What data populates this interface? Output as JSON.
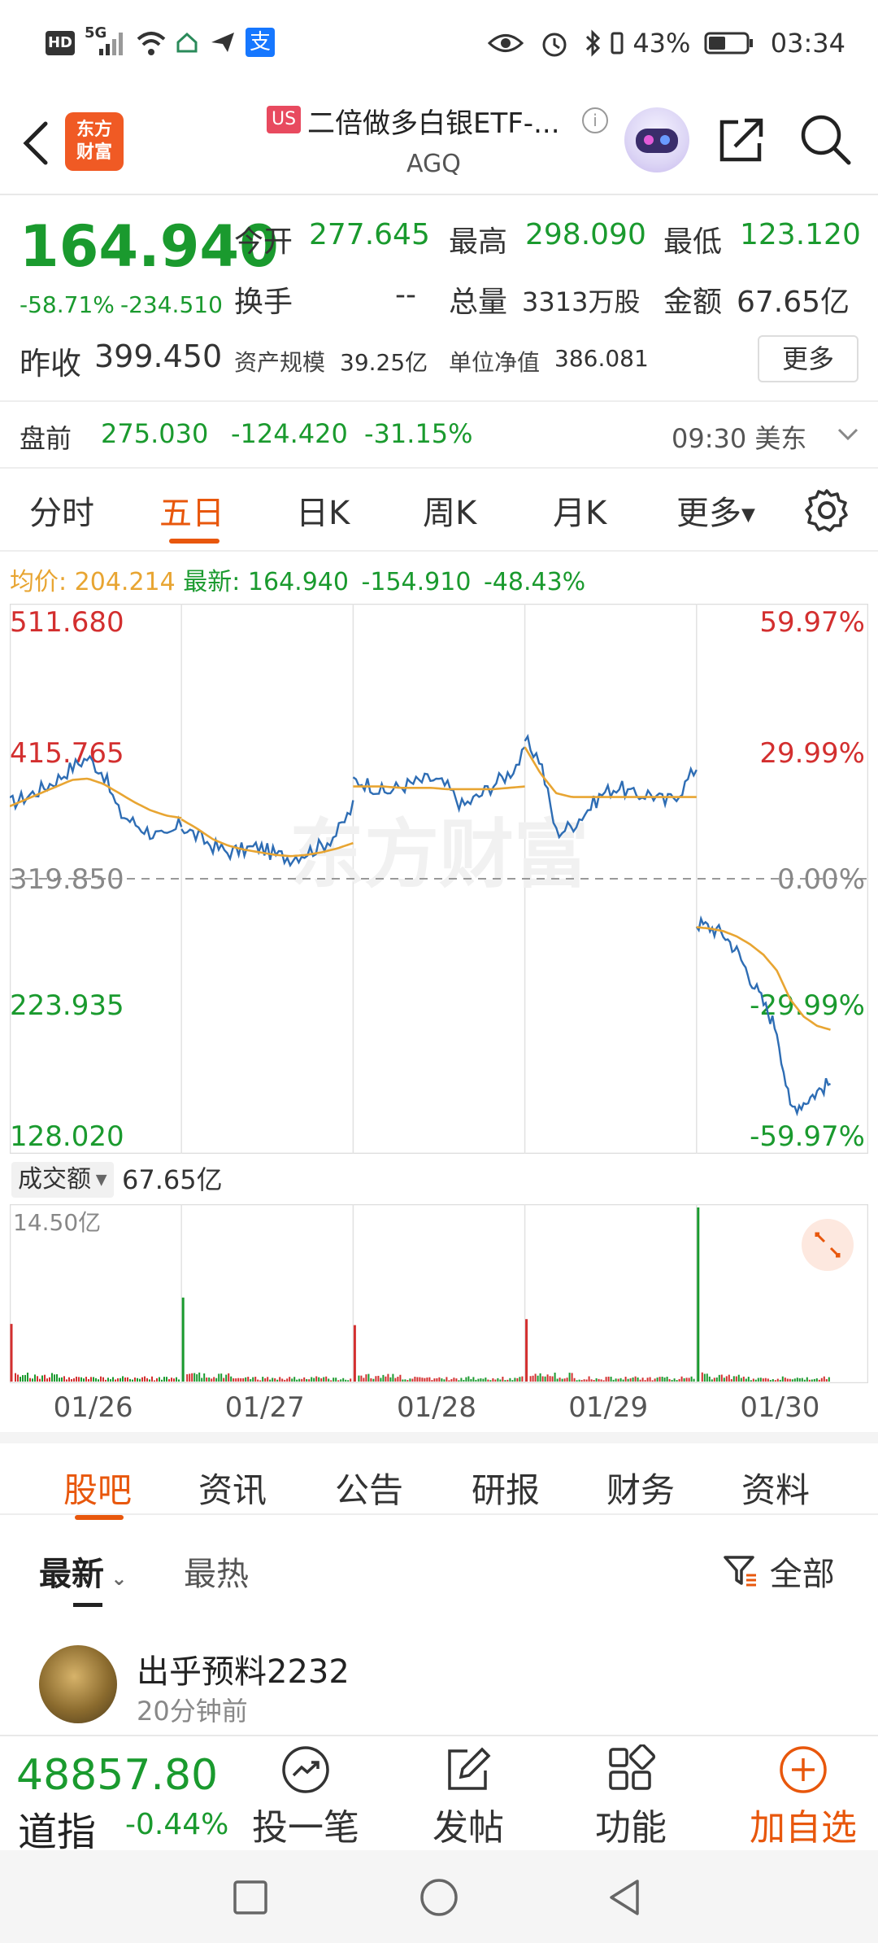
{
  "status_bar": {
    "hd": "HD",
    "signal": "5G",
    "alipay": "支",
    "battery": "43%",
    "time": "03:34"
  },
  "header": {
    "logo_line1": "东方",
    "logo_line2": "财富",
    "market_badge": "US",
    "name": "二倍做多白银ETF-...",
    "code": "AGQ",
    "info": "i"
  },
  "quote": {
    "price": "164.940",
    "change_pct": "-58.71%",
    "change_amt": "-234.510",
    "prev_close_label": "昨收",
    "prev_close": "399.450",
    "open_label": "今开",
    "open": "277.645",
    "high_label": "最高",
    "high": "298.090",
    "low_label": "最低",
    "low": "123.120",
    "turnover_label": "换手",
    "turnover": "--",
    "volume_label": "总量",
    "volume": "3313万股",
    "amount_label": "金额",
    "amount": "67.65亿",
    "aum_label": "资产规模",
    "aum": "39.25亿",
    "nav_label": "单位净值",
    "nav": "386.081",
    "more": "更多"
  },
  "premarket": {
    "label": "盘前",
    "price": "275.030",
    "change": "-124.420",
    "pct": "-31.15%",
    "time": "09:30 美东"
  },
  "chart_tabs": [
    "分时",
    "五日",
    "日K",
    "周K",
    "月K",
    "更多"
  ],
  "active_chart_tab": "五日",
  "avg_bar": {
    "avg_label": "均价:",
    "avg": "204.214",
    "latest_label": "最新:",
    "latest": "164.940",
    "change": "-154.910",
    "pct": "-48.43%"
  },
  "volume_panel": {
    "selector": "成交额",
    "total": "67.65亿",
    "axis_max": "14.50亿"
  },
  "colors": {
    "up": "#d32f2f",
    "down": "#1a9a2e",
    "accent": "#e8570c",
    "price_line": "#2e6db4",
    "avg_line": "#e8a532"
  },
  "chart_data": {
    "type": "line",
    "x": [
      "01/26",
      "01/27",
      "01/28",
      "01/29",
      "01/30"
    ],
    "ylim": [
      128.02,
      511.68
    ],
    "y_ticks_left": [
      "511.680",
      "415.765",
      "319.850",
      "223.935",
      "128.020"
    ],
    "y_ticks_right": [
      "59.97%",
      "29.99%",
      "0.00%",
      "-29.99%",
      "-59.97%"
    ],
    "baseline": 319.85,
    "grid": true,
    "watermark": "东方财富",
    "series": [
      {
        "values": [
          [
            377,
            382,
            388,
            395,
            405,
            412,
            400,
            370,
            362,
            355,
            350,
            362
          ],
          [
            360,
            352,
            345,
            340,
            342,
            344,
            338,
            336,
            340,
            345,
            355,
            375
          ],
          [
            395,
            392,
            385,
            390,
            393,
            396,
            390,
            375,
            382,
            392,
            400,
            415
          ],
          [
            425,
            410,
            355,
            360,
            372,
            385,
            390,
            383,
            385,
            378,
            387,
            405
          ],
          [
            286,
            283,
            278,
            265,
            245,
            225,
            205,
            145,
            150,
            158,
            165
          ]
        ]
      },
      {
        "values": [
          [
            375,
            380,
            385,
            390,
            395,
            396,
            392,
            385,
            378,
            372,
            368,
            366
          ],
          [
            365,
            358,
            350,
            345,
            342,
            340,
            338,
            337,
            338,
            340,
            343,
            347
          ],
          [
            390,
            390,
            390,
            389,
            389,
            389,
            388,
            388,
            388,
            388,
            389,
            390
          ],
          [
            420,
            400,
            385,
            382,
            382,
            382,
            382,
            382,
            382,
            382,
            382,
            382
          ],
          [
            283,
            282,
            280,
            276,
            270,
            262,
            250,
            228,
            215,
            208,
            205
          ]
        ]
      }
    ],
    "volume": {
      "ylim": [
        0,
        14.5
      ],
      "days": [
        {
          "spike": 4.8,
          "spike_color": "up"
        },
        {
          "spike": 7.0,
          "spike_color": "down"
        },
        {
          "spike": 4.7,
          "spike_color": "up"
        },
        {
          "spike": 5.2,
          "spike_color": "up"
        },
        {
          "spike": 14.5,
          "spike_color": "down"
        }
      ]
    }
  },
  "sub_tabs": [
    "股吧",
    "资讯",
    "公告",
    "研报",
    "财务",
    "资料"
  ],
  "active_sub_tab": "股吧",
  "feed": {
    "sort_latest": "最新",
    "sort_hot": "最热",
    "filter": "全部",
    "post_user": "出乎预料2232",
    "post_time": "20分钟前"
  },
  "bottom_bar": {
    "index_value": "48857.80",
    "index_name": "道指",
    "index_pct": "-0.44%",
    "invest": "投一笔",
    "post": "发帖",
    "functions": "功能",
    "add_watch": "加自选"
  },
  "icons": {
    "back": "chevron-left-icon",
    "share": "share-icon",
    "search": "search-icon",
    "settings": "gear-icon",
    "expand": "expand-icon",
    "filter": "filter-icon"
  }
}
